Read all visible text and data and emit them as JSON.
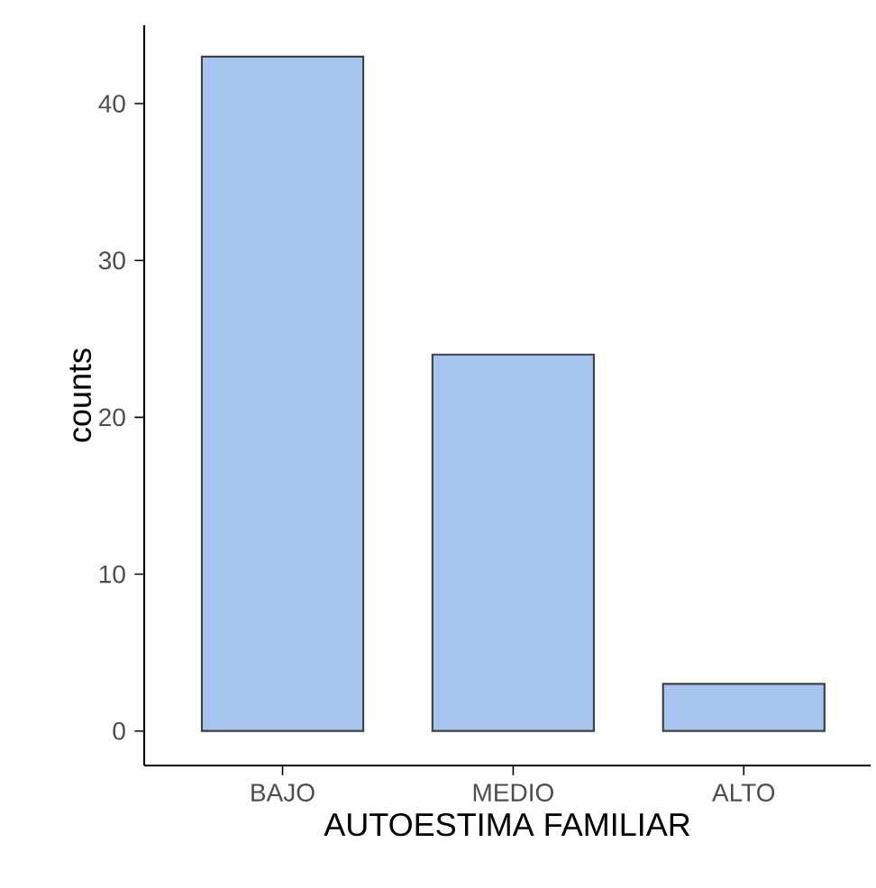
{
  "chart_data": {
    "type": "bar",
    "xlabel": "AUTOESTIMA FAMILIAR",
    "ylabel": "counts",
    "categories": [
      "BAJO",
      "MEDIO",
      "ALTO"
    ],
    "values": [
      43,
      24,
      3
    ],
    "color": "#a7c4f1",
    "ylim": [
      -2.2,
      45
    ],
    "yticks": [
      0,
      10,
      20,
      30,
      40
    ]
  }
}
